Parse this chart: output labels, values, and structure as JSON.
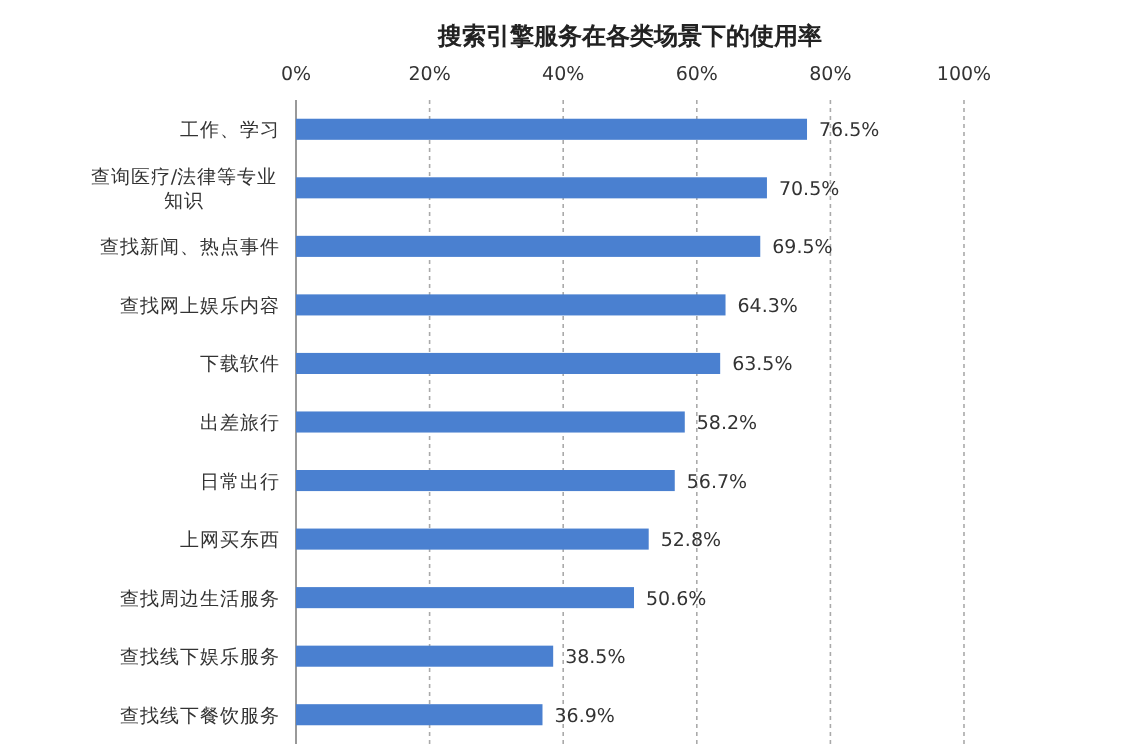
{
  "chart_data": {
    "type": "bar",
    "orientation": "horizontal",
    "title": "搜索引擎服务在各类场景下的使用率",
    "categories": [
      "工作、学习",
      "查询医疗/法律等专业知识",
      "查找新闻、热点事件",
      "查找网上娱乐内容",
      "下载软件",
      "出差旅行",
      "日常出行",
      "上网买东西",
      "查找周边生活服务",
      "查找线下娱乐服务",
      "查找线下餐饮服务"
    ],
    "values": [
      76.5,
      70.5,
      69.5,
      64.3,
      63.5,
      58.2,
      56.7,
      52.8,
      50.6,
      38.5,
      36.9
    ],
    "value_labels": [
      "76.5%",
      "70.5%",
      "69.5%",
      "64.3%",
      "63.5%",
      "58.2%",
      "56.7%",
      "52.8%",
      "50.6%",
      "38.5%",
      "36.9%"
    ],
    "color": "#4a80d0",
    "xlim": [
      0,
      100
    ],
    "xticks": [
      {
        "value": 0,
        "label": "0%"
      },
      {
        "value": 20,
        "label": "20%"
      },
      {
        "value": 40,
        "label": "40%"
      },
      {
        "value": 60,
        "label": "60%"
      },
      {
        "value": 80,
        "label": "80%"
      },
      {
        "value": 100,
        "label": "100%"
      }
    ],
    "grid": "x"
  }
}
